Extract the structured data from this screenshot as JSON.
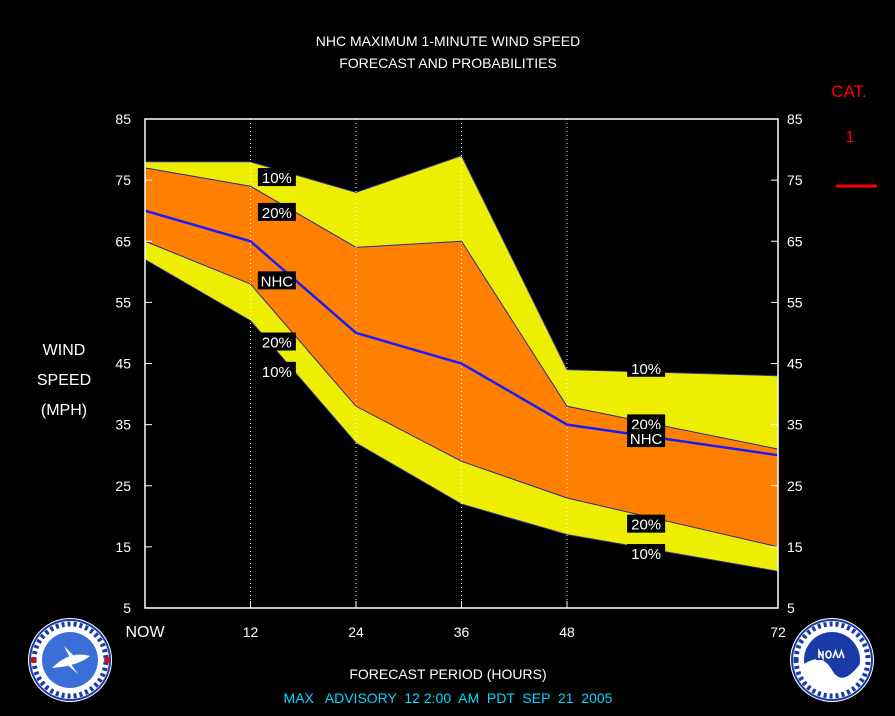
{
  "chart_data": {
    "type": "area",
    "title": "NHC MAXIMUM 1-MINUTE WIND SPEED",
    "subtitle": "FORECAST AND PROBABILITIES",
    "ylabel_lines": [
      "WIND",
      "SPEED",
      "(MPH)"
    ],
    "xlabel": "FORECAST PERIOD (HOURS)",
    "footer": "MAX   ADVISORY  12 2:00  AM  PDT  SEP  21  2005",
    "category": {
      "title": "CAT.",
      "value": "1",
      "color": "#ff0000"
    },
    "x": [
      0,
      12,
      24,
      36,
      48,
      72
    ],
    "xticks": [
      {
        "x": 0,
        "label": "NOW"
      },
      {
        "x": 12,
        "label": "12"
      },
      {
        "x": 24,
        "label": "24"
      },
      {
        "x": 36,
        "label": "36"
      },
      {
        "x": 48,
        "label": "48"
      },
      {
        "x": 72,
        "label": "72"
      }
    ],
    "yticks": [
      5,
      15,
      25,
      35,
      45,
      55,
      65,
      75,
      85
    ],
    "xlim": [
      0,
      72
    ],
    "ylim": [
      5,
      85
    ],
    "grid_x": [
      12,
      24,
      36,
      48
    ],
    "bands": [
      {
        "name": "10%",
        "color": "#eeee00",
        "upper": [
          78,
          78,
          73,
          79,
          44,
          43
        ],
        "lower": [
          62,
          52,
          32,
          22,
          17,
          11
        ]
      },
      {
        "name": "20%",
        "color": "#ff8000",
        "upper": [
          77,
          74,
          64,
          65,
          38,
          31
        ],
        "lower": [
          65,
          58,
          38,
          29,
          23,
          15
        ]
      }
    ],
    "series": [
      {
        "name": "NHC",
        "color": "#1a1aff",
        "values": [
          70,
          65,
          50,
          45,
          35,
          30
        ]
      }
    ],
    "labels": [
      {
        "text": "10%",
        "x": 15,
        "y": 75.5
      },
      {
        "text": "20%",
        "x": 15,
        "y": 69.8
      },
      {
        "text": "NHC",
        "x": 15,
        "y": 58.6
      },
      {
        "text": "20%",
        "x": 15,
        "y": 48.6
      },
      {
        "text": "10%",
        "x": 15,
        "y": 43.8
      },
      {
        "text": "10%",
        "x": 57,
        "y": 44.3
      },
      {
        "text": "20%",
        "x": 57,
        "y": 35.2
      },
      {
        "text": "NHC",
        "x": 57,
        "y": 32.8
      },
      {
        "text": "20%",
        "x": 57,
        "y": 18.8
      },
      {
        "text": "10%",
        "x": 57,
        "y": 14.0
      }
    ],
    "grid": true
  }
}
